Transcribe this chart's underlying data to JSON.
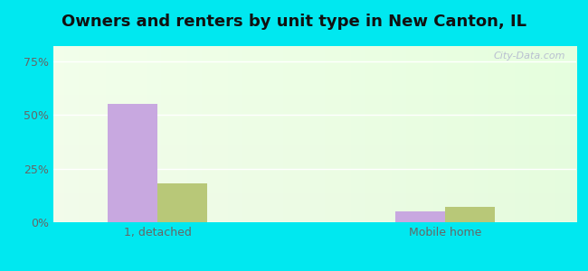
{
  "title": "Owners and renters by unit type in New Canton, IL",
  "categories": [
    "1, detached",
    "Mobile home"
  ],
  "owner_values": [
    55.0,
    5.0
  ],
  "renter_values": [
    18.0,
    7.0
  ],
  "owner_color": "#c8a8e0",
  "renter_color": "#b8c878",
  "bg_color": "#00e8f0",
  "yticks": [
    0,
    25,
    50,
    75
  ],
  "ylim": [
    0,
    82
  ],
  "bar_width": 0.38,
  "group_positions": [
    1.0,
    3.2
  ],
  "watermark": "City-Data.com",
  "xlabel_fontsize": 9,
  "ylabel_fontsize": 9,
  "title_fontsize": 13
}
